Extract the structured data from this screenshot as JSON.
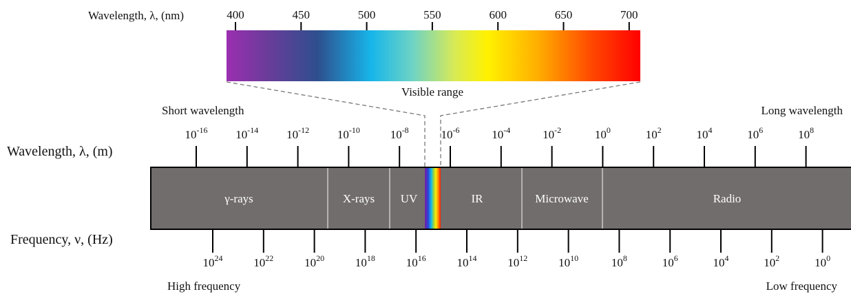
{
  "visible": {
    "axis_label": "Wavelength,  λ, (nm)",
    "ticks": [
      "400",
      "450",
      "500",
      "550",
      "600",
      "650",
      "700"
    ],
    "range_label": "Visible range",
    "gradient_stops": [
      {
        "offset": 0.0,
        "color": "#9a2fb0"
      },
      {
        "offset": 0.1,
        "color": "#6a3c9a"
      },
      {
        "offset": 0.22,
        "color": "#2e4f8e"
      },
      {
        "offset": 0.35,
        "color": "#17b6ea"
      },
      {
        "offset": 0.45,
        "color": "#6ed3c4"
      },
      {
        "offset": 0.55,
        "color": "#d7ea57"
      },
      {
        "offset": 0.63,
        "color": "#fff200"
      },
      {
        "offset": 0.75,
        "color": "#ffb000"
      },
      {
        "offset": 0.88,
        "color": "#ff4a00"
      },
      {
        "offset": 1.0,
        "color": "#ff0000"
      }
    ]
  },
  "wavelength": {
    "axis_label": "Wavelength,  λ, (m)",
    "short_label": "Short wavelength",
    "long_label": "Long wavelength",
    "base": "10",
    "exponents": [
      "-16",
      "-14",
      "-12",
      "-10",
      "-8",
      "-6",
      "-4",
      "-2",
      "0",
      "2",
      "4",
      "6",
      "8"
    ]
  },
  "frequency": {
    "axis_label": "Frequency, ν, (Hz)",
    "high_label": "High frequency",
    "low_label": "Low frequency",
    "base": "10",
    "exponents": [
      "24",
      "22",
      "20",
      "18",
      "16",
      "14",
      "12",
      "10",
      "8",
      "6",
      "4",
      "2",
      "0"
    ]
  },
  "bands": {
    "fill_color": "#716d6c",
    "labels": [
      "γ-rays",
      "X-rays",
      "UV",
      "IR",
      "Microwave",
      "Radio"
    ]
  }
}
